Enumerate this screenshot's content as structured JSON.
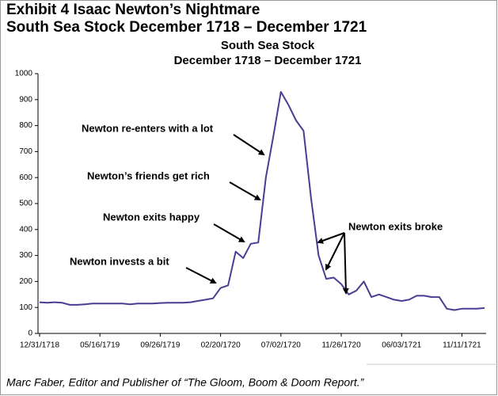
{
  "chart_data": {
    "type": "line",
    "exhibit_title": "Exhibit 4  Isaac Newton’s Nightmare",
    "exhibit_subtitle": "South Sea Stock December 1718 – December 1721",
    "title": "South Sea Stock",
    "subtitle": "December 1718 – December 1721",
    "source": "Marc Faber, Editor and Publisher of “The Gloom, Boom & Doom Report.”",
    "annotations": [
      "Newton re-enters with a lot",
      "Newton’s friends get rich",
      "Newton exits happy",
      "Newton invests a bit",
      "Newton exits broke"
    ],
    "categories": [
      "12/31/1718",
      null,
      null,
      null,
      null,
      null,
      null,
      null,
      "05/16/1719",
      null,
      null,
      null,
      null,
      null,
      null,
      null,
      "09/26/1719",
      null,
      null,
      null,
      null,
      null,
      null,
      null,
      "02/20/1720",
      null,
      null,
      null,
      null,
      null,
      null,
      null,
      "07/02/1720",
      null,
      null,
      null,
      null,
      null,
      null,
      null,
      "11/26/1720",
      null,
      null,
      null,
      null,
      null,
      null,
      null,
      "06/03/1721",
      null,
      null,
      null,
      null,
      null,
      null,
      null,
      "11/11/1721",
      null,
      null,
      null
    ],
    "series": [
      {
        "name": "South Sea Stock",
        "color": "#4b3c91",
        "values": [
          120,
          118,
          120,
          118,
          110,
          110,
          112,
          115,
          115,
          115,
          115,
          115,
          112,
          115,
          115,
          115,
          117,
          118,
          118,
          118,
          120,
          125,
          130,
          135,
          175,
          185,
          315,
          290,
          345,
          350,
          600,
          760,
          930,
          880,
          820,
          780,
          520,
          300,
          210,
          215,
          190,
          150,
          165,
          200,
          140,
          150,
          140,
          130,
          125,
          130,
          145,
          145,
          140,
          140,
          95,
          90,
          95,
          95,
          95,
          98
        ]
      }
    ],
    "ylim": [
      0,
      1000
    ],
    "yticks": [
      0,
      100,
      200,
      300,
      400,
      500,
      600,
      700,
      800,
      900,
      1000
    ],
    "grid": false
  }
}
